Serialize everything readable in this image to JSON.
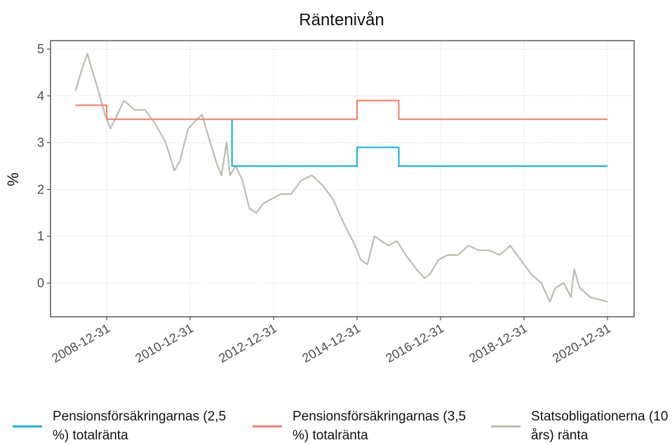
{
  "chart_data": {
    "type": "line",
    "title": "Räntenivån",
    "y_label": "%",
    "xlim": [
      "2007-08-27",
      "2021-08-21"
    ],
    "xticks": [
      "2008-12-31",
      "2010-12-31",
      "2012-12-31",
      "2014-12-31",
      "2016-12-31",
      "2018-12-31",
      "2020-12-31"
    ],
    "ylim": [
      -0.72,
      5.18
    ],
    "yticks": [
      0,
      1,
      2,
      3,
      4,
      5
    ],
    "grid": true,
    "legend": "bottom",
    "series": [
      {
        "name": "Pensionsförsäkringarnas (2,5 %) totalränta",
        "color": "#1bb6d2",
        "x": [
          "2012-01-01",
          "2012-01-01",
          "2014-12-31",
          "2014-12-31",
          "2015-12-31",
          "2015-12-31",
          "2020-12-31"
        ],
        "values": [
          3.5,
          2.5,
          2.5,
          2.9,
          2.9,
          2.5,
          2.5
        ]
      },
      {
        "name": "Pensionsförsäkringarnas (3,5 %) totalränta",
        "color": "#f4826f",
        "x": [
          "2008-04-01",
          "2008-12-31",
          "2008-12-31",
          "2014-12-31",
          "2014-12-31",
          "2015-12-31",
          "2015-12-31",
          "2020-12-31"
        ],
        "values": [
          3.8,
          3.8,
          3.5,
          3.5,
          3.9,
          3.9,
          3.5,
          3.5
        ]
      },
      {
        "name": "Statsobligationerna (10 års) ränta",
        "color": "#b9bfb1",
        "x": [
          "2008-04-01",
          "2008-06-01",
          "2008-07-15",
          "2008-09-01",
          "2008-11-01",
          "2008-12-15",
          "2009-02-01",
          "2009-06-01",
          "2009-09-01",
          "2009-12-01",
          "2010-03-01",
          "2010-06-01",
          "2010-08-15",
          "2010-10-01",
          "2010-12-15",
          "2011-03-01",
          "2011-04-15",
          "2011-06-01",
          "2011-08-15",
          "2011-10-01",
          "2011-11-15",
          "2011-12-15",
          "2012-02-01",
          "2012-04-01",
          "2012-06-01",
          "2012-08-01",
          "2012-10-01",
          "2012-12-15",
          "2013-03-01",
          "2013-06-01",
          "2013-09-01",
          "2013-12-01",
          "2014-03-01",
          "2014-06-01",
          "2014-09-01",
          "2014-12-15",
          "2015-02-01",
          "2015-04-01",
          "2015-06-01",
          "2015-08-01",
          "2015-10-01",
          "2015-12-15",
          "2016-03-01",
          "2016-06-01",
          "2016-08-15",
          "2016-10-01",
          "2016-12-15",
          "2017-03-01",
          "2017-06-01",
          "2017-09-01",
          "2017-12-01",
          "2018-03-01",
          "2018-06-01",
          "2018-09-01",
          "2018-12-01",
          "2019-03-01",
          "2019-06-01",
          "2019-08-15",
          "2019-10-01",
          "2019-12-15",
          "2020-02-15",
          "2020-03-15",
          "2020-05-01",
          "2020-08-01",
          "2020-12-31"
        ],
        "values": [
          4.1,
          4.6,
          4.9,
          4.5,
          4.0,
          3.6,
          3.3,
          3.9,
          3.7,
          3.7,
          3.4,
          3.0,
          2.4,
          2.6,
          3.3,
          3.5,
          3.6,
          3.2,
          2.6,
          2.3,
          3.0,
          2.3,
          2.5,
          2.2,
          1.6,
          1.5,
          1.7,
          1.8,
          1.9,
          1.9,
          2.2,
          2.3,
          2.1,
          1.8,
          1.3,
          0.8,
          0.5,
          0.4,
          1.0,
          0.9,
          0.8,
          0.9,
          0.6,
          0.3,
          0.1,
          0.2,
          0.5,
          0.6,
          0.6,
          0.8,
          0.7,
          0.7,
          0.6,
          0.8,
          0.5,
          0.2,
          0.0,
          -0.4,
          -0.1,
          0.0,
          -0.3,
          0.3,
          -0.1,
          -0.3,
          -0.4
        ]
      }
    ]
  }
}
